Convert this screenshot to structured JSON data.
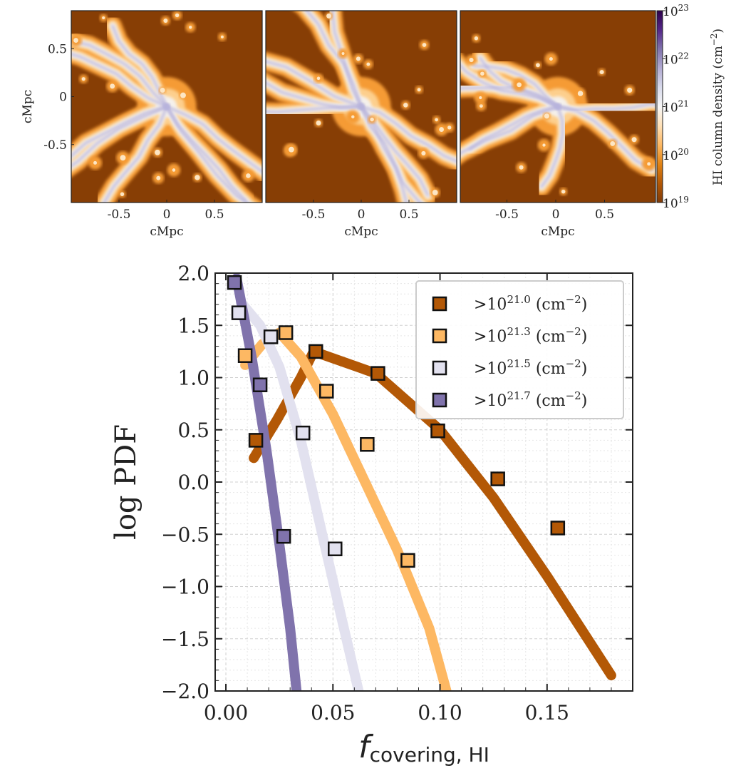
{
  "top_panels": {
    "panels": [
      {
        "name": "panel-1",
        "xlabel": "cMpc",
        "ylabel": "cMpc",
        "xticks": [
          "-0.5",
          "0",
          "0.5"
        ],
        "yticks": [
          "0.5",
          "0",
          "-0.5"
        ]
      },
      {
        "name": "panel-2",
        "xlabel": "cMpc",
        "xticks": [
          "-0.5",
          "0",
          "0.5"
        ]
      },
      {
        "name": "panel-3",
        "xlabel": "cMpc",
        "xticks": [
          "-0.5",
          "0",
          "0.5"
        ]
      }
    ],
    "colorbar": {
      "label": "HI column density (cm",
      "label_sup": "−2",
      "label_close": ")",
      "ticks": [
        {
          "base": "10",
          "exp": "23",
          "value": 23
        },
        {
          "base": "10",
          "exp": "22",
          "value": 22
        },
        {
          "base": "10",
          "exp": "21",
          "value": 21
        },
        {
          "base": "10",
          "exp": "20",
          "value": 20
        },
        {
          "base": "10",
          "exp": "19",
          "value": 19
        }
      ],
      "range": [
        19,
        23
      ],
      "colors": [
        "#7f3b08",
        "#b35806",
        "#e08214",
        "#fdb863",
        "#fee0b6",
        "#f7f7f7",
        "#d8daeb",
        "#b2abd2",
        "#8073ac",
        "#542788",
        "#2d004b"
      ]
    }
  },
  "chart_data": {
    "type": "line",
    "xlabel_main": "f",
    "xlabel_sub": "covering, HI",
    "ylabel": "log PDF",
    "xlim": [
      -0.005,
      0.19
    ],
    "ylim": [
      -2.0,
      2.0
    ],
    "xticks": [
      0.0,
      0.05,
      0.1,
      0.15
    ],
    "xtick_labels": [
      "0.00",
      "0.05",
      "0.10",
      "0.15"
    ],
    "yticks": [
      2.0,
      1.5,
      1.0,
      0.5,
      0.0,
      -0.5,
      -1.0,
      -1.5,
      -2.0
    ],
    "ytick_labels": [
      "2.0",
      "1.5",
      "1.0",
      "0.5",
      "0.0",
      "−0.5",
      "−1.0",
      "−1.5",
      "−2.0"
    ],
    "legend_position": "top-right",
    "series": [
      {
        "name": ">10^21.0 (cm^-2)",
        "label_pre": ">10",
        "label_exp": "21.0",
        "label_unit": " (cm",
        "label_unit_exp": "−2",
        "label_close": ")",
        "color": "#b35806",
        "line": [
          [
            0.013,
            0.23
          ],
          [
            0.024,
            0.6
          ],
          [
            0.035,
            1.0
          ],
          [
            0.041,
            1.25
          ],
          [
            0.07,
            1.04
          ],
          [
            0.1,
            0.5
          ],
          [
            0.125,
            -0.15
          ],
          [
            0.15,
            -0.9
          ],
          [
            0.18,
            -1.85
          ]
        ],
        "points": [
          [
            0.014,
            0.4
          ],
          [
            0.042,
            1.25
          ],
          [
            0.071,
            1.04
          ],
          [
            0.099,
            0.49
          ],
          [
            0.127,
            0.03
          ],
          [
            0.155,
            -0.44
          ]
        ]
      },
      {
        "name": ">10^21.3 (cm^-2)",
        "label_pre": ">10",
        "label_exp": "21.3",
        "label_unit": " (cm",
        "label_unit_exp": "−2",
        "label_close": ")",
        "color": "#fdb863",
        "line": [
          [
            0.009,
            1.12
          ],
          [
            0.017,
            1.32
          ],
          [
            0.025,
            1.43
          ],
          [
            0.035,
            1.2
          ],
          [
            0.05,
            0.65
          ],
          [
            0.065,
            0.0
          ],
          [
            0.08,
            -0.65
          ],
          [
            0.095,
            -1.4
          ],
          [
            0.103,
            -2.0
          ]
        ],
        "points": [
          [
            0.009,
            1.21
          ],
          [
            0.028,
            1.43
          ],
          [
            0.047,
            0.87
          ],
          [
            0.066,
            0.36
          ],
          [
            0.085,
            -0.75
          ]
        ]
      },
      {
        "name": ">10^21.5 (cm^-2)",
        "label_pre": ">10",
        "label_exp": "21.5",
        "label_unit": " (cm",
        "label_unit_exp": "−2",
        "label_close": ")",
        "color": "#e2e1ef",
        "line": [
          [
            0.007,
            1.72
          ],
          [
            0.016,
            1.5
          ],
          [
            0.025,
            1.1
          ],
          [
            0.035,
            0.4
          ],
          [
            0.045,
            -0.5
          ],
          [
            0.054,
            -1.3
          ],
          [
            0.062,
            -2.0
          ]
        ],
        "points": [
          [
            0.006,
            1.62
          ],
          [
            0.021,
            1.39
          ],
          [
            0.036,
            0.47
          ],
          [
            0.051,
            -0.64
          ]
        ]
      },
      {
        "name": ">10^21.7 (cm^-2)",
        "label_pre": ">10",
        "label_exp": "21.7",
        "label_unit": " (cm",
        "label_unit_exp": "−2",
        "label_close": ")",
        "color": "#8073ac",
        "line": [
          [
            0.005,
            1.95
          ],
          [
            0.012,
            1.2
          ],
          [
            0.019,
            0.3
          ],
          [
            0.025,
            -0.6
          ],
          [
            0.03,
            -1.4
          ],
          [
            0.033,
            -2.0
          ]
        ],
        "points": [
          [
            0.004,
            1.91
          ],
          [
            0.016,
            0.93
          ],
          [
            0.027,
            -0.52
          ]
        ]
      }
    ]
  }
}
